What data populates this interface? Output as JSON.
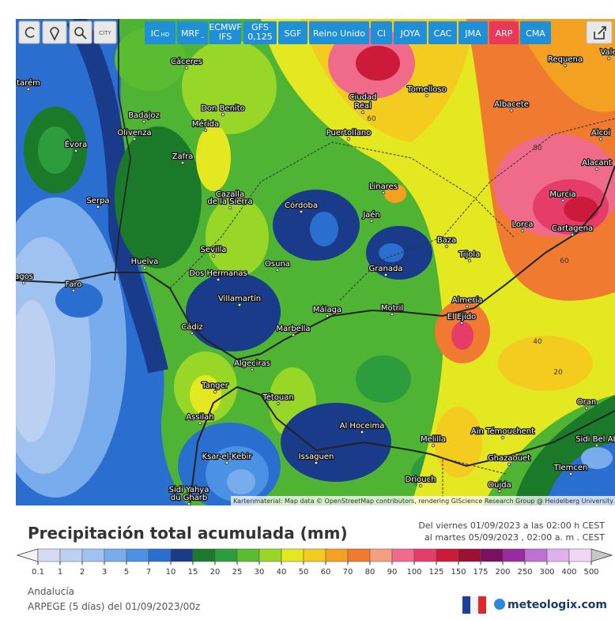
{
  "toolbar": {
    "city_label": "CITY",
    "models": [
      {
        "label": "IC",
        "sub": "HD",
        "stacked": false,
        "color": "#1f8fd8"
      },
      {
        "label": "MRF",
        "sub": "_",
        "stacked": false,
        "color": "#1f8fd8"
      },
      {
        "label": "ECMWF",
        "sub": "IFS",
        "stacked": true,
        "color": "#1f8fd8"
      },
      {
        "label": "GFS",
        "sub": "0,125",
        "stacked": true,
        "color": "#1f8fd8"
      },
      {
        "label": "SGF",
        "sub": null,
        "stacked": false,
        "color": "#1f8fd8"
      },
      {
        "label": "Reino Unido",
        "sub": null,
        "stacked": false,
        "color": "#1f8fd8"
      },
      {
        "label": "CI",
        "sub": null,
        "stacked": false,
        "color": "#1f8fd8"
      },
      {
        "label": "JOYA",
        "sub": null,
        "stacked": false,
        "color": "#1f8fd8"
      },
      {
        "label": "CAC",
        "sub": null,
        "stacked": false,
        "color": "#1f8fd8"
      },
      {
        "label": "JMA",
        "sub": null,
        "stacked": false,
        "color": "#1f8fd8"
      },
      {
        "label": "ARP",
        "sub": null,
        "stacked": false,
        "color": "#e8395a"
      },
      {
        "label": "CMA",
        "sub": null,
        "stacked": false,
        "color": "#1f8fd8"
      }
    ]
  },
  "map": {
    "places": [
      "Cáceres",
      "Badajoz",
      "Don Benito",
      "Mérida",
      "Olivenza",
      "Évora",
      "Zafra",
      "Cazalla",
      "de la Sierra",
      "Serpa",
      "Córdoba",
      "Sevilla",
      "Osuna",
      "Huelva",
      "Dos Hermanas",
      "Faro",
      "Villamartín",
      "Granada",
      "Málaga",
      "Motril",
      "Almería",
      "El Ejido",
      "Cádiz",
      "Marbella",
      "Algeciras",
      "Tanger",
      "Tétouan",
      "Assilah",
      "Ksar-el-Kebir",
      "Al Hoceima",
      "Issaguen",
      "Melilla",
      "Aïn Témouchent",
      "Ghazaouet",
      "Oujda",
      "Driouch",
      "Sidi Yahya",
      "du Gharb",
      "Tlemcen",
      "Sidi Bel Ab",
      "Oran",
      "Jaén",
      "Linares",
      "Baza",
      "Tíjola",
      "Lorca",
      "Murcia",
      "Cartagena",
      "Alacant",
      "Alcoi",
      "Albacete",
      "Ciudad",
      "Real",
      "Puertollano",
      "Tomelloso",
      "Requena",
      "Vale",
      "tarém",
      "agos"
    ],
    "contour_labels": [
      "60",
      "80",
      "60",
      "40",
      "20"
    ],
    "attribution": "Kartenmaterial: Map data © OpenStreetMap contributors, rendering GIScience Research Group @ Heidelberg University"
  },
  "panel": {
    "title": "Precipitación total acumulada (mm)",
    "date_from": "Del viernes 01/09/2023 a las 02:00 h CEST",
    "date_to": "al martes 05/09/2023 , 02:00 a. m . CEST",
    "region": "Andalucía",
    "model_run": "ARPEGE (5 días) del 01/09/2023/00z",
    "brand": "meteologix.com"
  },
  "legend": {
    "values": [
      0.1,
      1,
      2,
      3,
      5,
      7,
      10,
      15,
      20,
      25,
      30,
      40,
      50,
      60,
      70,
      80,
      90,
      100,
      125,
      150,
      175,
      200,
      250,
      300,
      400,
      500
    ],
    "colors": [
      "#d6daf2",
      "#bcd0f2",
      "#a0c2f0",
      "#78acec",
      "#4c92e4",
      "#2a6ed0",
      "#1a3a8a",
      "#1a7a2a",
      "#2c9c3c",
      "#5abc30",
      "#98d628",
      "#e4e820",
      "#f4cc20",
      "#f4a020",
      "#f07a30",
      "#f4a080",
      "#f06a8a",
      "#e63c68",
      "#cc1a3a",
      "#9a1030",
      "#7a1060",
      "#9a2aa0",
      "#c070d0",
      "#e0b0ec",
      "#f0d8f4"
    ]
  }
}
